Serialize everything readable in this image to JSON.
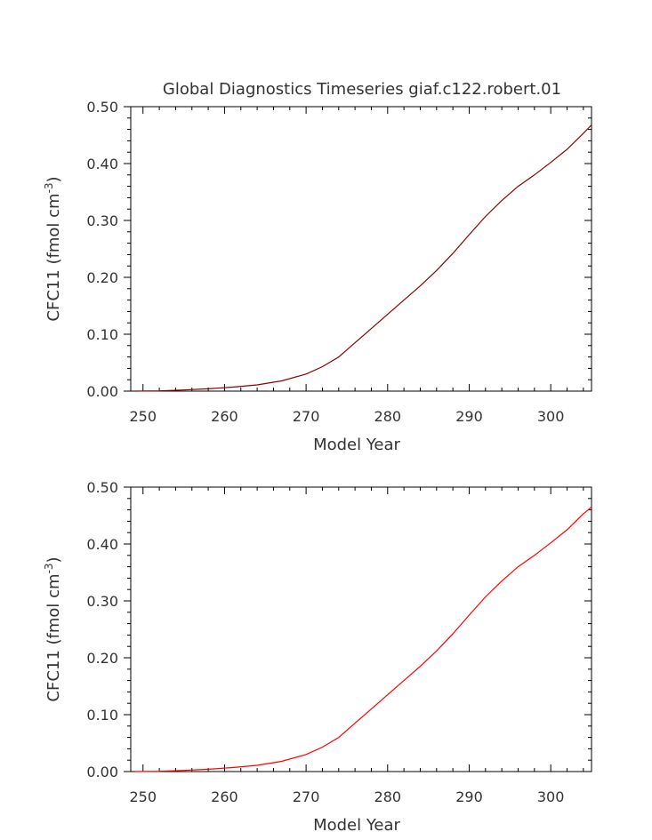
{
  "chart_data": [
    {
      "type": "line",
      "title": "Global Diagnostics Timeseries giaf.c122.robert.01",
      "xlabel": "Model Year",
      "ylabel": "CFC11 (fmol cm",
      "ylabel_superscript": "-3",
      "ylabel_suffix": ")",
      "xlim": [
        248.5,
        305
      ],
      "ylim": [
        0,
        0.5
      ],
      "xticks": [
        250,
        260,
        270,
        280,
        290,
        300
      ],
      "yticks": [
        0,
        0.1,
        0.2,
        0.3,
        0.4,
        0.5
      ],
      "xtick_labels": [
        "250",
        "260",
        "270",
        "280",
        "290",
        "300"
      ],
      "ytick_labels": [
        "0.00",
        "0.10",
        "0.20",
        "0.30",
        "0.40",
        "0.50"
      ],
      "grid": false,
      "series": [
        {
          "color": "#8b0000",
          "x": [
            249,
            252,
            255,
            258,
            261,
            264,
            267,
            270,
            272,
            274,
            276,
            278,
            280,
            282,
            284,
            286,
            288,
            290,
            292,
            294,
            296,
            298,
            300,
            302,
            304,
            305
          ],
          "y": [
            0,
            0.0005,
            0.002,
            0.004,
            0.007,
            0.011,
            0.018,
            0.03,
            0.043,
            0.06,
            0.085,
            0.11,
            0.135,
            0.16,
            0.185,
            0.212,
            0.242,
            0.275,
            0.307,
            0.335,
            0.36,
            0.38,
            0.402,
            0.425,
            0.453,
            0.468
          ]
        }
      ]
    },
    {
      "type": "line",
      "title": "",
      "xlabel": "Model Year",
      "ylabel": "CFC11 (fmol cm",
      "ylabel_superscript": "-3",
      "ylabel_suffix": ")",
      "xlim": [
        248.5,
        305
      ],
      "ylim": [
        0,
        0.5
      ],
      "xticks": [
        250,
        260,
        270,
        280,
        290,
        300
      ],
      "yticks": [
        0,
        0.1,
        0.2,
        0.3,
        0.4,
        0.5
      ],
      "xtick_labels": [
        "250",
        "260",
        "270",
        "280",
        "290",
        "300"
      ],
      "ytick_labels": [
        "0.00",
        "0.10",
        "0.20",
        "0.30",
        "0.40",
        "0.50"
      ],
      "grid": false,
      "series": [
        {
          "color": "#ff0000",
          "x": [
            249,
            252,
            255,
            258,
            261,
            264,
            267,
            270,
            272,
            274,
            276,
            278,
            280,
            282,
            284,
            286,
            288,
            290,
            292,
            294,
            296,
            298,
            300,
            302,
            304,
            305
          ],
          "y": [
            0,
            0.0005,
            0.002,
            0.004,
            0.007,
            0.011,
            0.018,
            0.03,
            0.043,
            0.06,
            0.085,
            0.11,
            0.135,
            0.16,
            0.185,
            0.212,
            0.242,
            0.275,
            0.307,
            0.335,
            0.36,
            0.38,
            0.402,
            0.425,
            0.453,
            0.465
          ]
        }
      ]
    }
  ]
}
